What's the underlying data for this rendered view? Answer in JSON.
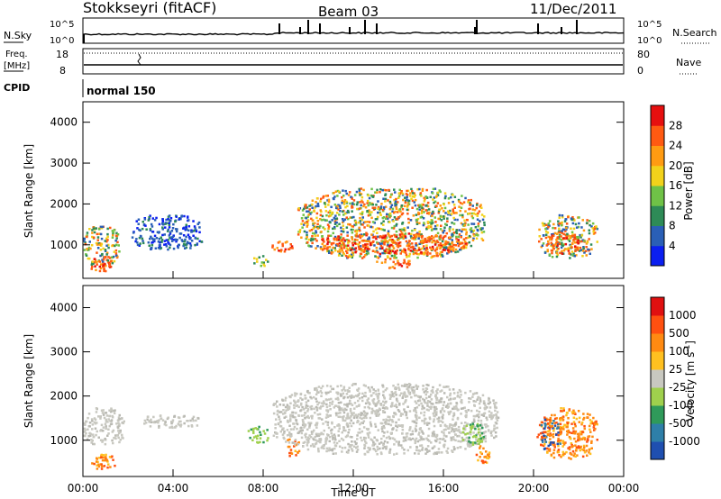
{
  "header": {
    "station": "Stokkseyri (fitACF)",
    "beam": "Beam 03",
    "date": "11/Dec/2011"
  },
  "noise_panel": {
    "left_label": "N.Sky",
    "right_label": "N.Search",
    "left_ticks": [
      "10^5",
      "10^0"
    ],
    "right_ticks": [
      "10^5",
      "10^0"
    ]
  },
  "freq_panel": {
    "left_label_1": "Freq.",
    "left_label_2": "[MHz]",
    "right_label": "Nave",
    "left_ticks": [
      "18",
      "8"
    ],
    "right_ticks": [
      "80",
      "0"
    ]
  },
  "cpid": {
    "label": "CPID",
    "value": "normal 150"
  },
  "chart_data": [
    {
      "type": "heatmap",
      "name": "power",
      "ylabel": "Slant Range [km]",
      "colorbar_label": "Power [dB]",
      "ylim": [
        180,
        4500
      ],
      "yticks": [
        1000,
        2000,
        3000,
        4000
      ],
      "colorbar_ticks": [
        "4",
        "8",
        "12",
        "16",
        "20",
        "24",
        "28"
      ],
      "colorbar_colors": [
        "#0b1ff0",
        "#2a5fb6",
        "#2e8b57",
        "#6fc247",
        "#f2d21b",
        "#ff9b12",
        "#ff5a12",
        "#e60f0f"
      ],
      "blobs": [
        {
          "t": [
            0.0,
            1.6
          ],
          "r": [
            500,
            1500
          ],
          "level": "mixed"
        },
        {
          "t": [
            0.3,
            1.3
          ],
          "r": [
            350,
            750
          ],
          "level": "high"
        },
        {
          "t": [
            2.1,
            5.3
          ],
          "r": [
            900,
            1750
          ],
          "level": "low"
        },
        {
          "t": [
            7.5,
            8.3
          ],
          "r": [
            500,
            750
          ],
          "level": "mid"
        },
        {
          "t": [
            8.3,
            9.3
          ],
          "r": [
            850,
            1150
          ],
          "level": "high"
        },
        {
          "t": [
            9.5,
            17.8
          ],
          "r": [
            700,
            2400
          ],
          "level": "mixed"
        },
        {
          "t": [
            10.5,
            17.0
          ],
          "r": [
            800,
            1300
          ],
          "level": "high"
        },
        {
          "t": [
            13.0,
            14.6
          ],
          "r": [
            450,
            700
          ],
          "level": "high"
        },
        {
          "t": [
            20.2,
            22.8
          ],
          "r": [
            700,
            1750
          ],
          "level": "mixed"
        },
        {
          "t": [
            20.5,
            22.0
          ],
          "r": [
            800,
            1300
          ],
          "level": "high"
        }
      ]
    },
    {
      "type": "heatmap",
      "name": "velocity",
      "xlabel": "Time UT",
      "ylabel": "Slant Range [km]",
      "colorbar_label": "Velocity [m s^-1]",
      "ylim": [
        180,
        4500
      ],
      "yticks": [
        1000,
        2000,
        3000,
        4000
      ],
      "xticks": [
        "00:00",
        "04:00",
        "08:00",
        "12:00",
        "16:00",
        "20:00",
        "00:00"
      ],
      "xlim_hours": [
        0,
        24
      ],
      "colorbar_ticks": [
        "1000",
        "500",
        "100",
        "25",
        "-25",
        "-100",
        "-500",
        "-1000"
      ],
      "colorbar_colors": [
        "#1f4fb0",
        "#2e7fa8",
        "#2f9a5a",
        "#9fd04d",
        "#c8c8c0",
        "#ffc020",
        "#ff8a12",
        "#ff5010",
        "#e01010"
      ],
      "blobs": [
        {
          "t": [
            0.0,
            1.8
          ],
          "r": [
            900,
            1750
          ],
          "level": "gray"
        },
        {
          "t": [
            0.2,
            1.4
          ],
          "r": [
            350,
            700
          ],
          "level": "orange"
        },
        {
          "t": [
            2.6,
            5.2
          ],
          "r": [
            1300,
            1600
          ],
          "level": "gray"
        },
        {
          "t": [
            7.3,
            8.2
          ],
          "r": [
            950,
            1350
          ],
          "level": "green"
        },
        {
          "t": [
            9.0,
            9.6
          ],
          "r": [
            650,
            1100
          ],
          "level": "orange"
        },
        {
          "t": [
            8.4,
            18.4
          ],
          "r": [
            700,
            2300
          ],
          "level": "gray"
        },
        {
          "t": [
            16.8,
            17.8
          ],
          "r": [
            900,
            1400
          ],
          "level": "green"
        },
        {
          "t": [
            17.4,
            18.0
          ],
          "r": [
            500,
            900
          ],
          "level": "orange"
        },
        {
          "t": [
            20.3,
            22.8
          ],
          "r": [
            600,
            1750
          ],
          "level": "orange"
        },
        {
          "t": [
            20.1,
            21.2
          ],
          "r": [
            800,
            1500
          ],
          "level": "blue"
        }
      ]
    }
  ]
}
